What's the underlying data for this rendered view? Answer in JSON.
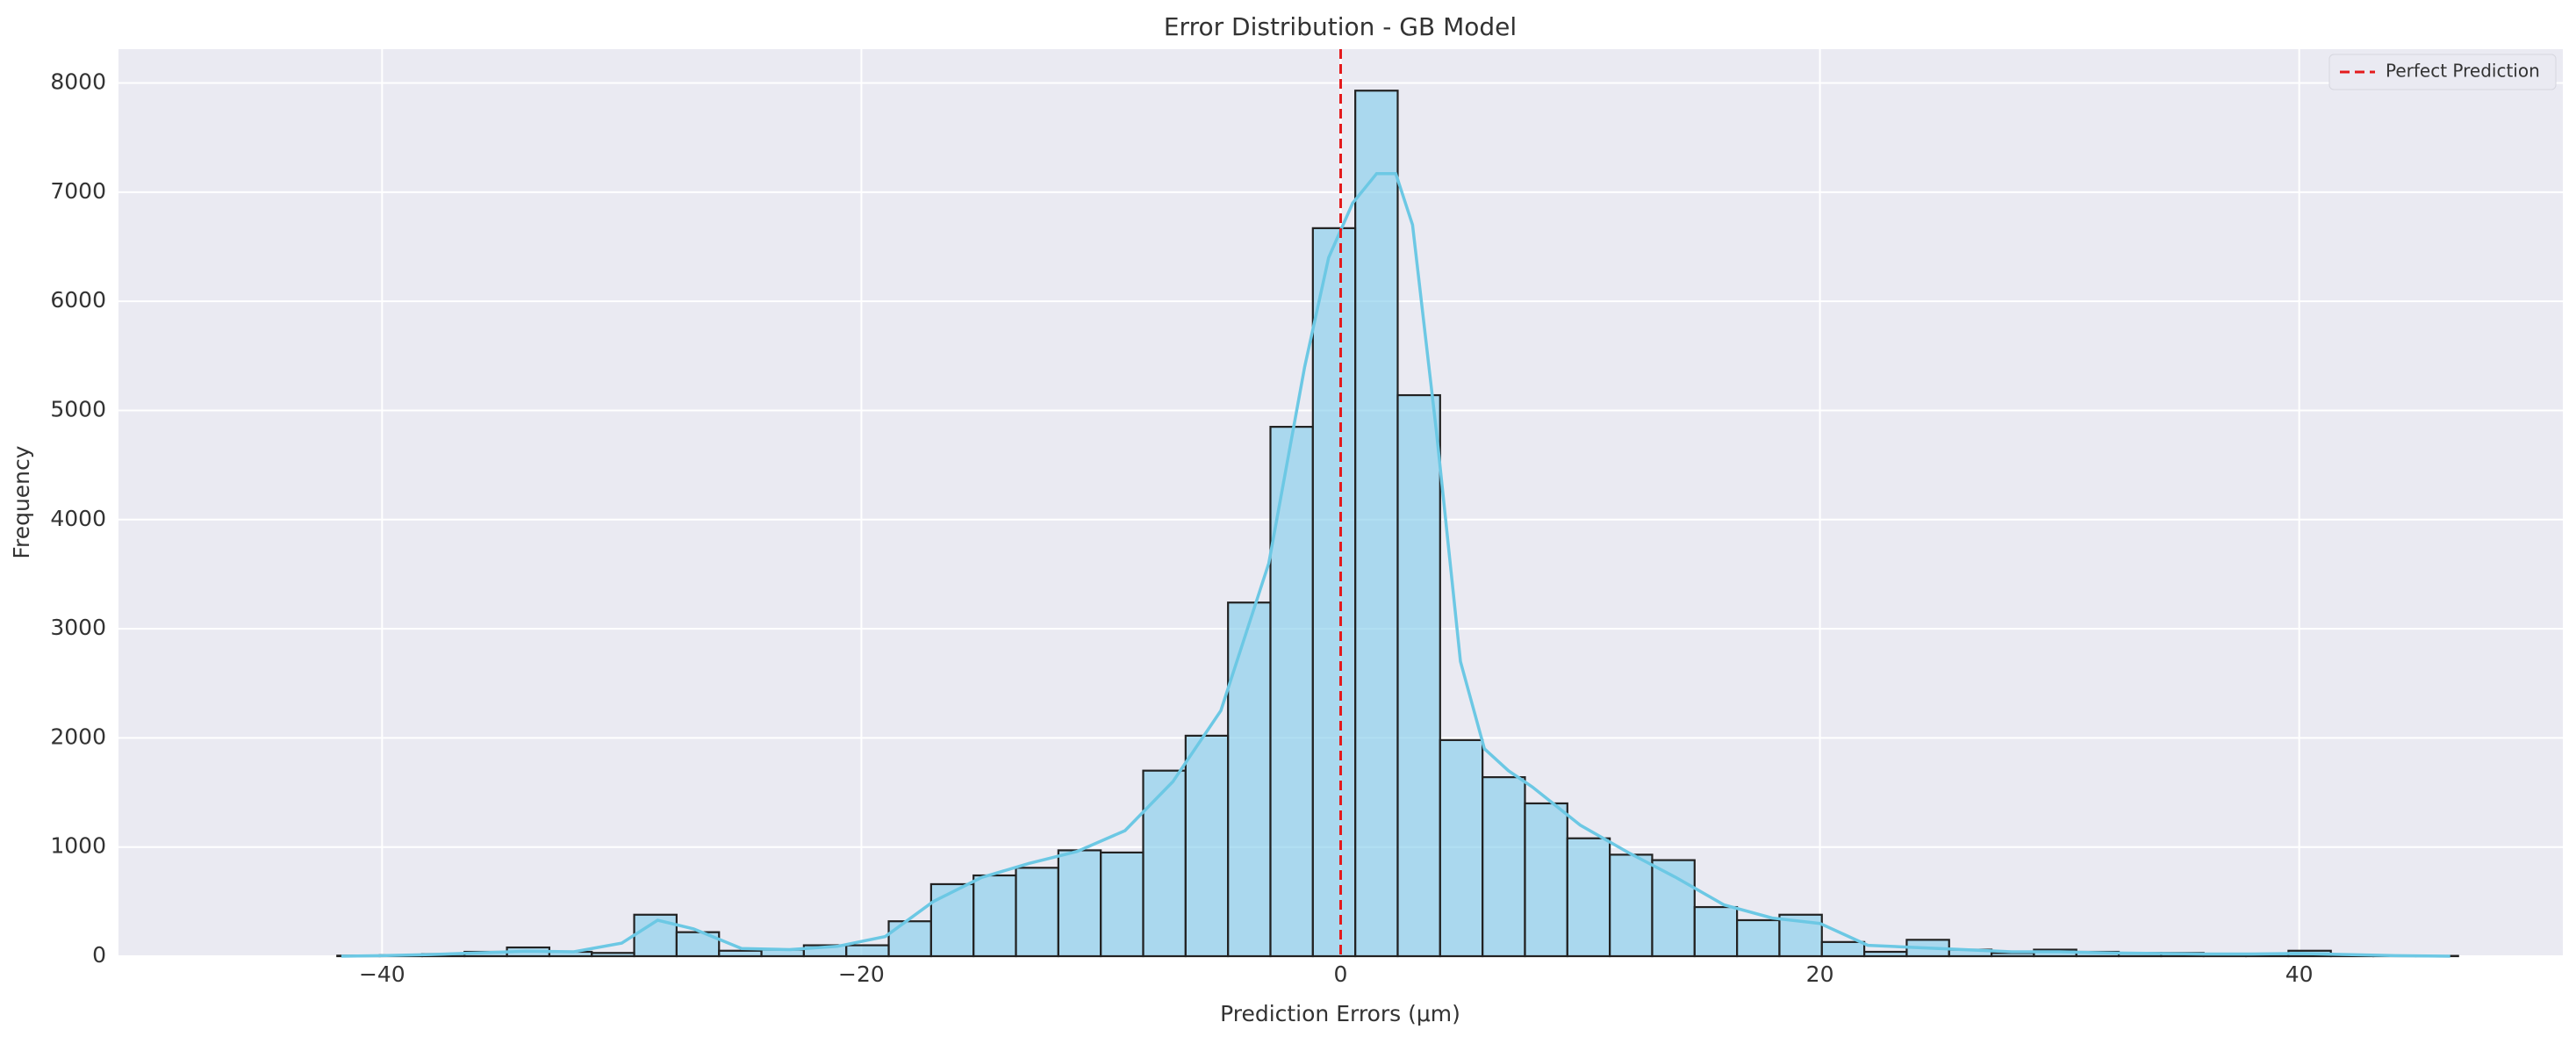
{
  "chart_data": {
    "type": "histogram",
    "title": "Error Distribution - GB Model",
    "x_label": "Prediction Errors (μm)",
    "y_label": "Frequency",
    "bins": [
      -41.87,
      -40.1,
      -38.33,
      -36.56,
      -34.79,
      -33.02,
      -31.25,
      -29.48,
      -27.71,
      -25.94,
      -24.17,
      -22.4,
      -20.63,
      -18.86,
      -17.09,
      -15.32,
      -13.55,
      -11.78,
      -10.01,
      -8.24,
      -6.47,
      -4.7,
      -2.93,
      -1.16,
      0.61,
      2.38,
      4.15,
      5.92,
      7.69,
      9.46,
      11.23,
      13.0,
      14.77,
      16.54,
      18.31,
      20.08,
      21.85,
      23.62,
      25.39,
      27.16,
      28.93,
      30.7,
      32.47,
      34.24,
      36.01,
      37.78,
      39.55,
      41.32,
      43.09,
      44.86,
      46.63
    ],
    "values": [
      5,
      10,
      20,
      40,
      80,
      40,
      30,
      380,
      220,
      50,
      60,
      100,
      100,
      320,
      660,
      740,
      810,
      970,
      950,
      1700,
      2020,
      3240,
      4850,
      6670,
      7930,
      5140,
      1980,
      1640,
      1400,
      1080,
      930,
      880,
      450,
      330,
      380,
      130,
      40,
      150,
      60,
      30,
      60,
      40,
      30,
      30,
      20,
      20,
      50,
      10,
      5,
      3
    ],
    "color": "#87ceeb",
    "edge_color": "#222222",
    "kde": {
      "color": "#6cc8e4",
      "x": [
        -41.7,
        -40,
        -38,
        -36,
        -34,
        -32,
        -30,
        -28.5,
        -27,
        -25,
        -23,
        -21,
        -19,
        -17,
        -15,
        -13,
        -11,
        -9,
        -7,
        -5,
        -3,
        -1.5,
        -0.5,
        0.5,
        1.5,
        2.3,
        3,
        4,
        5,
        6,
        7,
        8,
        10,
        12,
        14,
        16,
        18,
        20,
        21,
        22,
        24,
        26,
        28,
        30,
        32,
        34,
        36,
        38,
        40,
        42,
        44,
        46.3
      ],
      "values": [
        0,
        5,
        15,
        30,
        45,
        40,
        120,
        330,
        250,
        70,
        60,
        90,
        180,
        500,
        720,
        850,
        960,
        1150,
        1600,
        2250,
        3600,
        5400,
        6400,
        6900,
        7170,
        7170,
        6700,
        4800,
        2700,
        1900,
        1700,
        1550,
        1200,
        950,
        720,
        470,
        350,
        300,
        200,
        100,
        80,
        60,
        40,
        40,
        30,
        25,
        20,
        20,
        25,
        15,
        5,
        0
      ]
    },
    "vlines": [
      {
        "x": 0,
        "label": "Perfect Prediction",
        "color": "#e41a1c"
      }
    ],
    "xlim": [
      -51,
      51
    ],
    "ylim": [
      0,
      8310
    ],
    "xticks": [
      {
        "value": -40,
        "label": "−40"
      },
      {
        "value": -20,
        "label": "−20"
      },
      0,
      20,
      40
    ],
    "yticks": [
      0,
      1000,
      2000,
      3000,
      4000,
      5000,
      6000,
      7000,
      8000
    ],
    "grid": true,
    "legend_position": "upper right"
  }
}
